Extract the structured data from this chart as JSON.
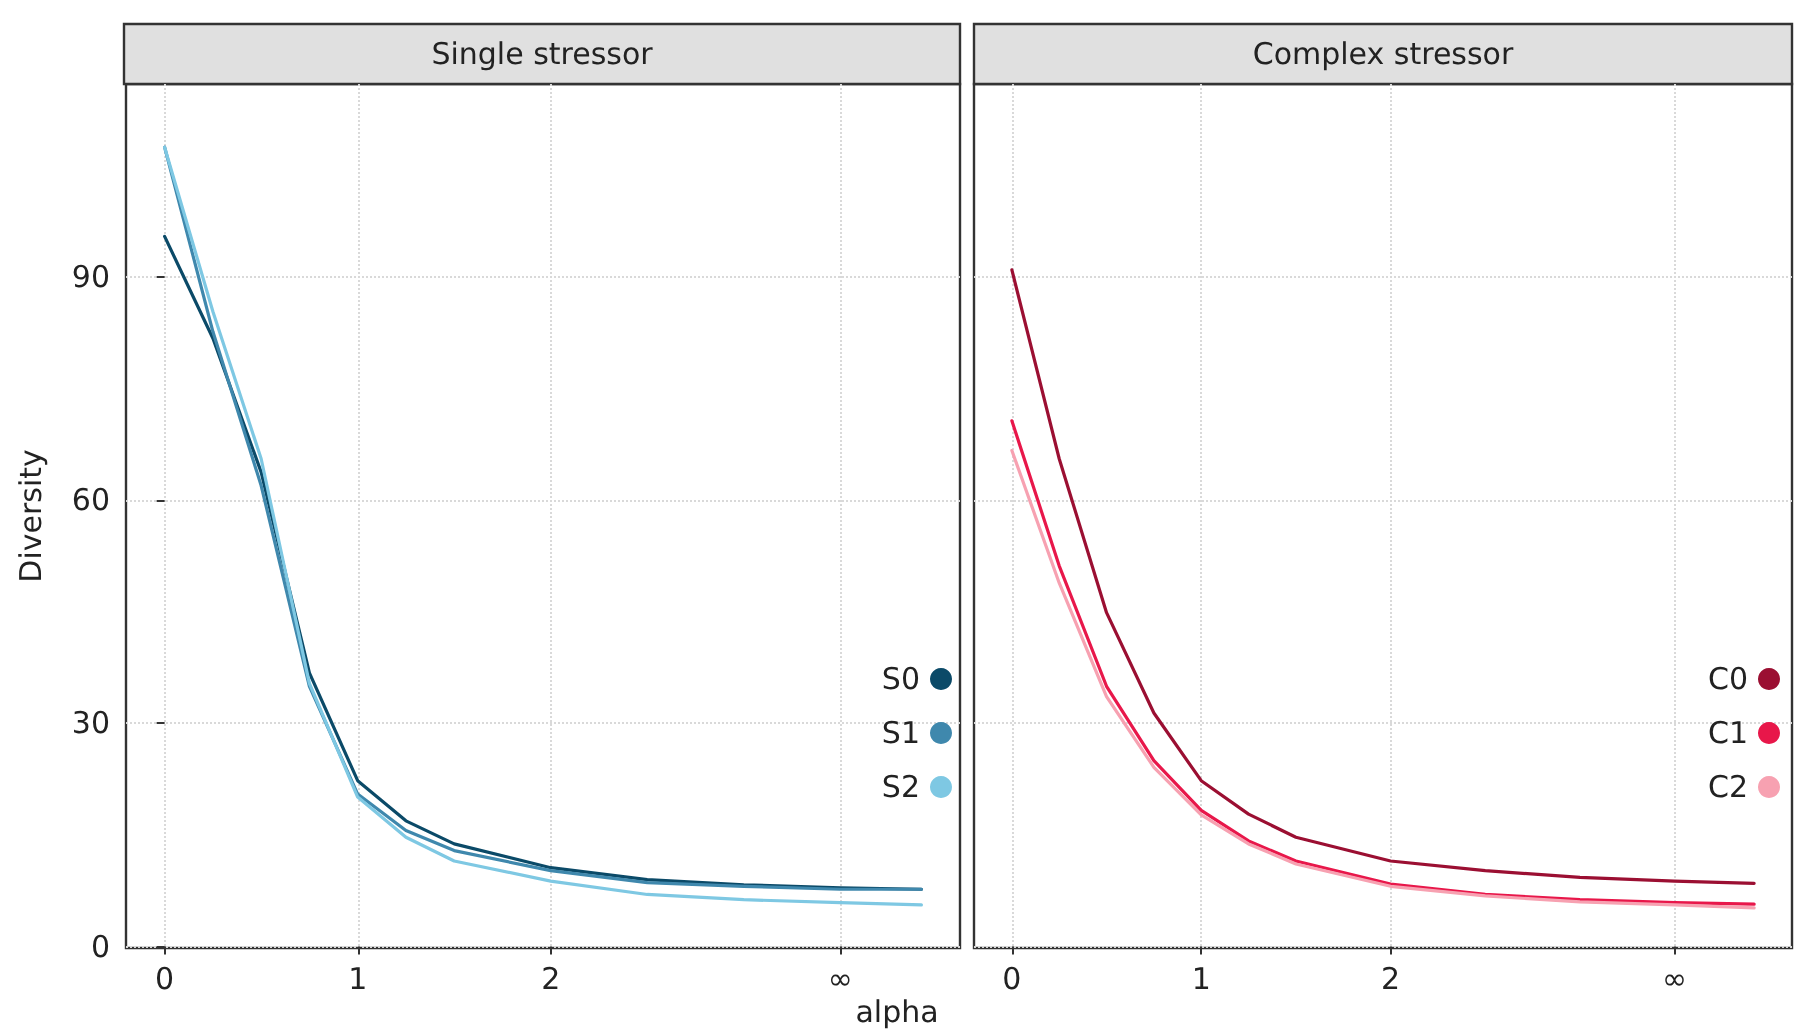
{
  "chart_data": [
    {
      "type": "line",
      "title": "Single stressor",
      "xlabel": "alpha",
      "ylabel": "Diversity",
      "x": [
        0,
        0.25,
        0.5,
        0.75,
        1,
        1.25,
        1.5,
        2,
        2.5,
        3,
        3.5,
        3.92
      ],
      "series": [
        {
          "name": "S0",
          "color": "#0b4a68",
          "values": [
            95.5,
            81.8,
            63.8,
            36.8,
            22.3,
            16.9,
            13.8,
            10.6,
            9.0,
            8.3,
            7.9,
            7.7
          ]
        },
        {
          "name": "S1",
          "color": "#3f88ad",
          "values": [
            107.5,
            82.7,
            62,
            35,
            20.5,
            15.6,
            12.9,
            10.2,
            8.6,
            8.1,
            7.7,
            7.7
          ]
        },
        {
          "name": "S2",
          "color": "#7ec8e3",
          "values": [
            107.5,
            85.4,
            65.6,
            35.4,
            20.1,
            14.7,
            11.5,
            8.8,
            7.0,
            6.3,
            5.9,
            5.6
          ]
        }
      ],
      "xlim": [
        -0.2,
        4.12
      ],
      "xticks": [
        0,
        1,
        2,
        {
          "value": 3.5,
          "label": "∞"
        }
      ],
      "ylim": [
        -0.2,
        116
      ],
      "yticks": [
        0,
        30,
        60,
        90
      ],
      "grid": true,
      "legend": "bottom right"
    },
    {
      "type": "line",
      "title": "Complex stressor",
      "x": [
        0,
        0.25,
        0.5,
        0.75,
        1,
        1.25,
        1.5,
        2,
        2.5,
        3,
        3.5,
        3.92
      ],
      "series": [
        {
          "name": "C0",
          "color": "#9b0f32",
          "values": [
            91,
            65.6,
            44.9,
            31.4,
            22.3,
            17.8,
            14.7,
            11.5,
            10.2,
            9.3,
            8.8,
            8.5
          ]
        },
        {
          "name": "C1",
          "color": "#e8174a",
          "values": [
            70.7,
            51.2,
            35,
            25,
            18.3,
            14.2,
            11.5,
            8.4,
            7.0,
            6.3,
            5.9,
            5.7
          ]
        },
        {
          "name": "C2",
          "color": "#f7a1b1",
          "values": [
            66.7,
            48.9,
            33.6,
            24.1,
            17.7,
            13.8,
            11.1,
            8.1,
            6.8,
            6.0,
            5.6,
            5.2
          ]
        }
      ],
      "xlim": [
        -0.2,
        4.12
      ],
      "xticks": [
        0,
        1,
        2,
        {
          "value": 3.5,
          "label": "∞"
        }
      ],
      "ylim": [
        -0.2,
        116
      ],
      "yticks": [
        0,
        30,
        60,
        90
      ],
      "grid": true,
      "legend": "bottom right",
      "tick_labels": "x"
    }
  ]
}
